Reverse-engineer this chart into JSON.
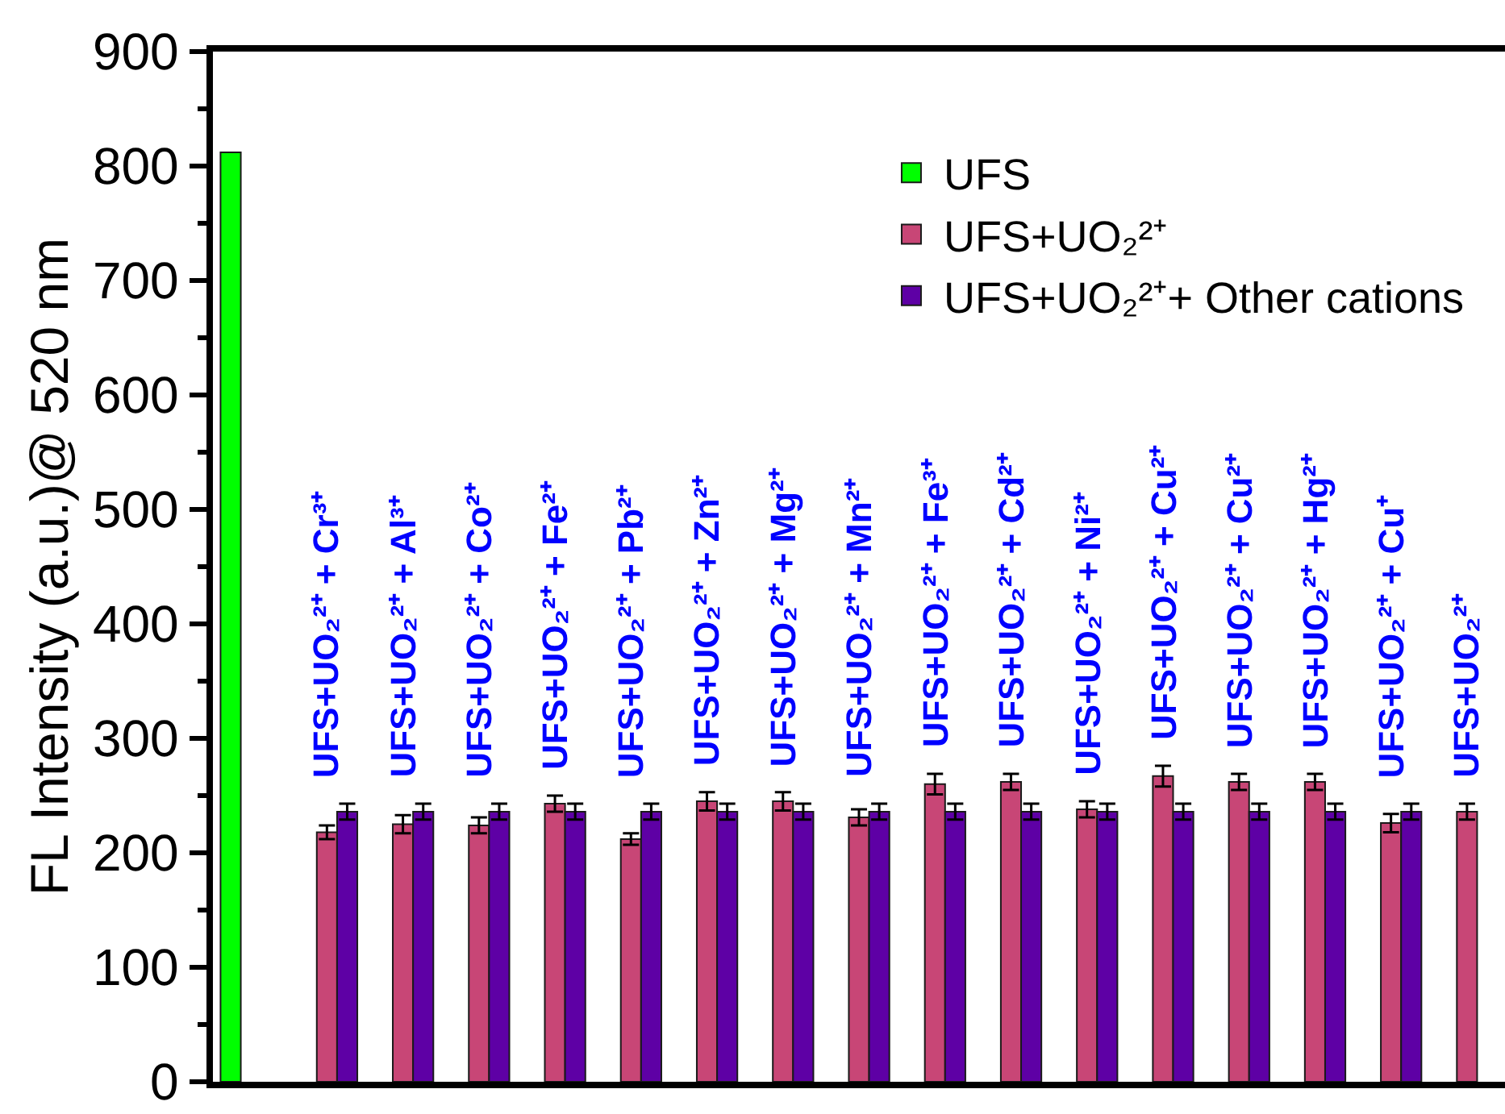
{
  "chart_data": {
    "type": "bar",
    "ylabel": "FL Intensity (a.u.)@ 520 nm",
    "categories": [
      null,
      "UFS+UO₂²⁺ + Cr³⁺",
      "UFS+UO₂²⁺ + Al³⁺",
      "UFS+UO₂²⁺ + Co²⁺",
      "UFS+UO₂²⁺ + Fe²⁺",
      "UFS+UO₂²⁺ + Pb²⁺",
      "UFS+UO₂²⁺ + Zn²⁺",
      "UFS+UO₂²⁺ + Mg²⁺",
      "UFS+UO₂²⁺ + Mn²⁺",
      "UFS+UO₂²⁺ + Fe³⁺",
      "UFS+UO₂²⁺ + Cd²⁺",
      "UFS+UO₂²⁺ + Ni²⁺",
      "UFS+UO₂²⁺ + Cu²⁺",
      "UFS+UO₂²⁺ + Cu²⁺",
      "UFS+UO₂²⁺ + Hg²⁺",
      "UFS+UO₂²⁺ + Cu⁺",
      "UFS+UO₂²⁺"
    ],
    "series": [
      {
        "name": "UFS",
        "color": "#00ff00",
        "values": [
          812,
          null,
          null,
          null,
          null,
          null,
          null,
          null,
          null,
          null,
          null,
          null,
          null,
          null,
          null,
          null,
          null
        ]
      },
      {
        "name": "UFS+UO₂²⁺",
        "color": "#c84676",
        "values": [
          null,
          218,
          225,
          224,
          243,
          212,
          245,
          245,
          231,
          260,
          262,
          238,
          267,
          262,
          262,
          226,
          236
        ],
        "errors": [
          null,
          6,
          8,
          7,
          7,
          5,
          8,
          8,
          7,
          9,
          7,
          7,
          9,
          7,
          7,
          8,
          7
        ]
      },
      {
        "name": "UFS+UO₂²⁺+ Other cations",
        "color": "#5e00a5",
        "values": [
          null,
          236,
          236,
          236,
          236,
          236,
          236,
          236,
          236,
          236,
          236,
          236,
          236,
          236,
          236,
          236,
          null
        ],
        "errors": [
          null,
          7,
          7,
          7,
          7,
          7,
          7,
          7,
          7,
          7,
          7,
          7,
          7,
          7,
          7,
          7,
          null
        ]
      }
    ],
    "ylim": [
      0,
      900
    ],
    "yticks": [
      0,
      {
        "value": 50,
        "label": null
      },
      100,
      {
        "value": 150,
        "label": null
      },
      200,
      {
        "value": 250,
        "label": null
      },
      300,
      {
        "value": 350,
        "label": null
      },
      400,
      {
        "value": 450,
        "label": null
      },
      500,
      {
        "value": 550,
        "label": null
      },
      600,
      {
        "value": 650,
        "label": null
      },
      700,
      {
        "value": 750,
        "label": null
      },
      800,
      {
        "value": 850,
        "label": null
      },
      900
    ],
    "legend": "top right"
  }
}
